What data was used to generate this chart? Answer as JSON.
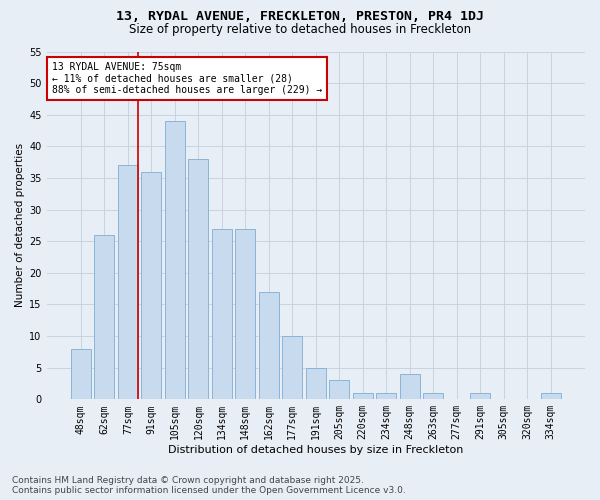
{
  "title": "13, RYDAL AVENUE, FRECKLETON, PRESTON, PR4 1DJ",
  "subtitle": "Size of property relative to detached houses in Freckleton",
  "xlabel": "Distribution of detached houses by size in Freckleton",
  "ylabel": "Number of detached properties",
  "categories": [
    "48sqm",
    "62sqm",
    "77sqm",
    "91sqm",
    "105sqm",
    "120sqm",
    "134sqm",
    "148sqm",
    "162sqm",
    "177sqm",
    "191sqm",
    "205sqm",
    "220sqm",
    "234sqm",
    "248sqm",
    "263sqm",
    "277sqm",
    "291sqm",
    "305sqm",
    "320sqm",
    "334sqm"
  ],
  "values": [
    8,
    26,
    37,
    36,
    44,
    38,
    27,
    27,
    17,
    10,
    5,
    3,
    1,
    1,
    4,
    1,
    0,
    1,
    0,
    0,
    1
  ],
  "bar_color": "#c8daed",
  "bar_edge_color": "#8ab4d8",
  "grid_color": "#c8d4e0",
  "background_color": "#e8eef6",
  "annotation_text": "13 RYDAL AVENUE: 75sqm\n← 11% of detached houses are smaller (28)\n88% of semi-detached houses are larger (229) →",
  "annotation_box_color": "#ffffff",
  "annotation_box_edge": "#cc0000",
  "redline_index": 2,
  "ylim": [
    0,
    55
  ],
  "yticks": [
    0,
    5,
    10,
    15,
    20,
    25,
    30,
    35,
    40,
    45,
    50,
    55
  ],
  "footer_line1": "Contains HM Land Registry data © Crown copyright and database right 2025.",
  "footer_line2": "Contains public sector information licensed under the Open Government Licence v3.0.",
  "title_fontsize": 9.5,
  "subtitle_fontsize": 8.5,
  "xlabel_fontsize": 8,
  "ylabel_fontsize": 7.5,
  "tick_fontsize": 7,
  "annotation_fontsize": 7,
  "footer_fontsize": 6.5
}
